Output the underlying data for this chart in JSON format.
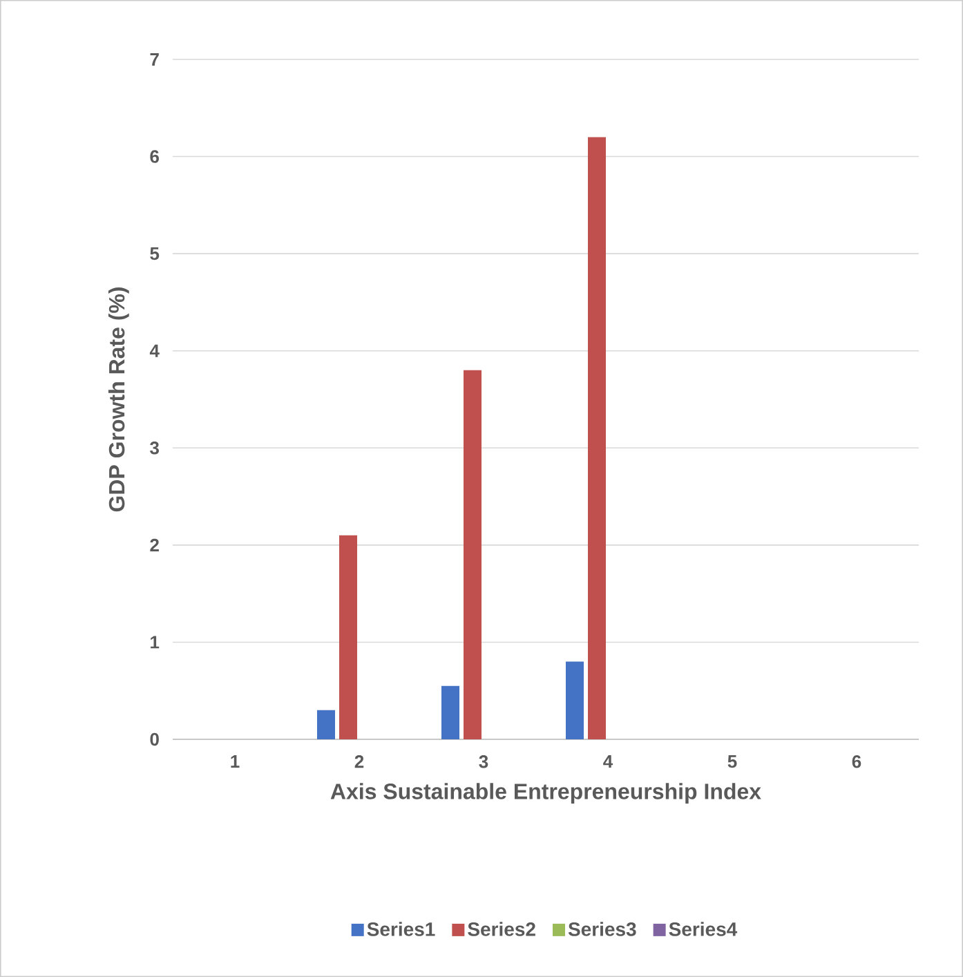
{
  "chart_data": {
    "type": "bar",
    "xlabel": "Axis Sustainable Entrepreneurship Index",
    "ylabel": "GDP Growth Rate (%)",
    "categories": [
      "1",
      "2",
      "3",
      "4",
      "5",
      "6"
    ],
    "series": [
      {
        "name": "Series1",
        "color": "#4472c4",
        "values": [
          null,
          0.3,
          0.55,
          0.8,
          null,
          null
        ]
      },
      {
        "name": "Series2",
        "color": "#c0504d",
        "values": [
          null,
          2.1,
          3.8,
          6.2,
          null,
          null
        ]
      },
      {
        "name": "Series3",
        "color": "#9bbb59",
        "values": [
          null,
          null,
          null,
          null,
          null,
          null
        ]
      },
      {
        "name": "Series4",
        "color": "#8064a2",
        "values": [
          null,
          null,
          null,
          null,
          null,
          null
        ]
      }
    ],
    "ylim": [
      0,
      7
    ],
    "yticks": [
      0,
      1,
      2,
      3,
      4,
      5,
      6,
      7
    ],
    "grid": "y",
    "legend": "bottom"
  }
}
